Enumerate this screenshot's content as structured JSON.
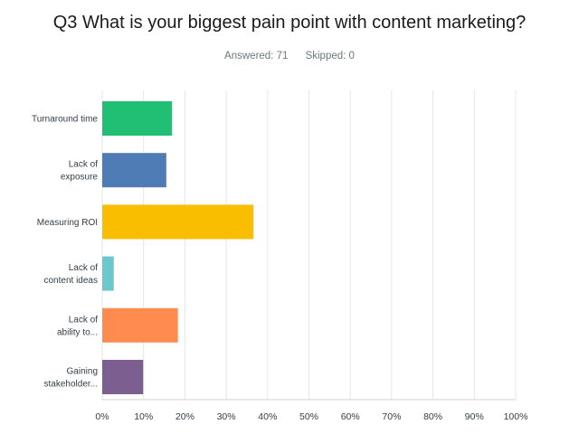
{
  "header": {
    "question": "Q3 What is your biggest pain point with content marketing?",
    "answered_label": "Answered: 71",
    "skipped_label": "Skipped: 0"
  },
  "chart_data": {
    "type": "bar",
    "orientation": "horizontal",
    "title": "Q3 What is your biggest pain point with content marketing?",
    "categories": [
      [
        "Turnaround time"
      ],
      [
        "Lack of",
        "exposure"
      ],
      [
        "Measuring ROI"
      ],
      [
        "Lack of",
        "content ideas"
      ],
      [
        "Lack of",
        "ability to..."
      ],
      [
        "Gaining",
        "stakeholder..."
      ]
    ],
    "values": [
      16.9,
      15.5,
      36.6,
      2.8,
      18.3,
      9.9
    ],
    "colors": [
      "#21bf73",
      "#507cb6",
      "#f9be00",
      "#6bc8cd",
      "#ff8b4f",
      "#7d5e90"
    ],
    "xlim": [
      0,
      100
    ],
    "xticks": [
      0,
      10,
      20,
      30,
      40,
      50,
      60,
      70,
      80,
      90,
      100
    ],
    "xtick_labels": [
      "0%",
      "10%",
      "20%",
      "30%",
      "40%",
      "50%",
      "60%",
      "70%",
      "80%",
      "90%",
      "100%"
    ],
    "grid": true
  }
}
